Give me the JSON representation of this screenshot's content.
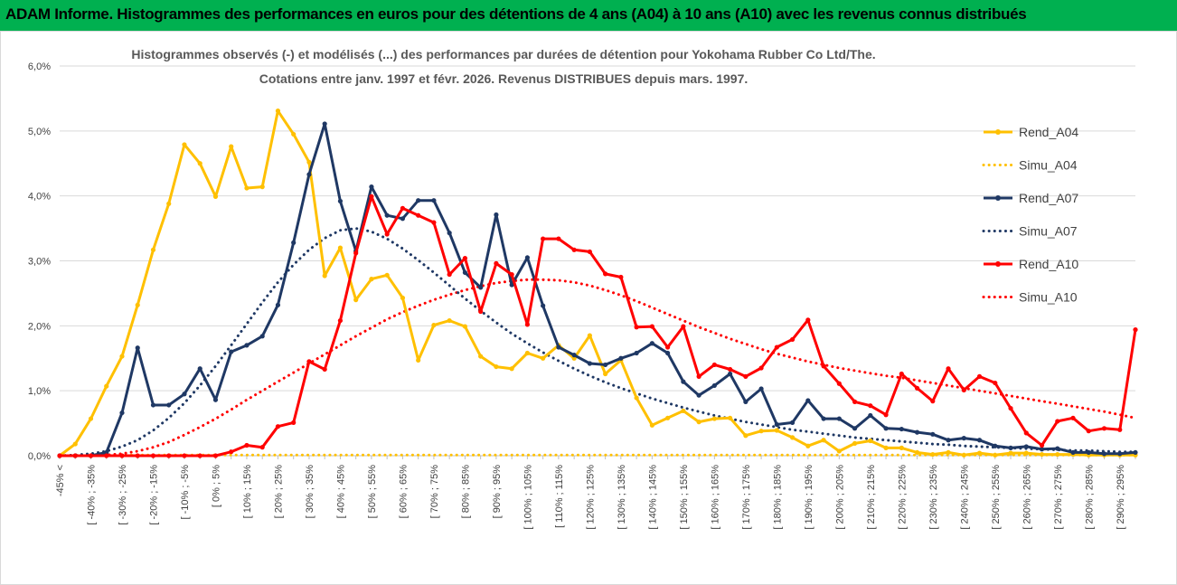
{
  "banner": {
    "title": "ADAM Informe. Histogrammes des performances en euros pour des détentions de 4 ans (A04) à 10 ans (A10) avec les revenus connus distribués"
  },
  "chart_data": {
    "type": "line",
    "title_line1": "Histogrammes observés (-) et modélisés (...) des performances par durées de détention pour Yokohama Rubber Co Ltd/The.",
    "title_line2": "Cotations entre janv. 1997 et févr. 2026. Revenus DISTRIBUES depuis mars. 1997.",
    "ylim": [
      0,
      6
    ],
    "yticks": [
      "0,0%",
      "1,0%",
      "2,0%",
      "3,0%",
      "4,0%",
      "5,0%",
      "6,0%"
    ],
    "categories": [
      "-45% <",
      "[ -45% ; -40% ]",
      "[ -40% ; -35% ]",
      "[ -35% ; -30% ]",
      "[ -30% ; -25% ]",
      "[ -25% ; -20% ]",
      "[ -20% ; -15% ]",
      "[ -15% ; -10% ]",
      "[ -10% ; -5% ]",
      "[ -5% ; 0% ]",
      "[ 0% ; 5% ]",
      "[ 5% ; 10% ]",
      "[ 10% ; 15% ]",
      "[ 15% ; 20% ]",
      "[ 20% ; 25% ]",
      "[ 25% ; 30% ]",
      "[ 30% ; 35% ]",
      "[ 35% ; 40% ]",
      "[ 40% ; 45% ]",
      "[ 45% ; 50% ]",
      "[ 50% ; 55% ]",
      "[ 55% ; 60% ]",
      "[ 60% ; 65% ]",
      "[ 65% ; 70% ]",
      "[ 70% ; 75% ]",
      "[ 75% ; 80% ]",
      "[ 80% ; 85% ]",
      "[ 85% ; 90% ]",
      "[ 90% ; 95% ]",
      "[ 95% ; 100% ]",
      "[ 100% ; 105% ]",
      "[ 105% ; 110% ]",
      "[ 110% ; 115% ]",
      "[ 115% ; 120% ]",
      "[ 120% ; 125% ]",
      "[ 125% ; 130% ]",
      "[ 130% ; 135% ]",
      "[ 135% ; 140% ]",
      "[ 140% ; 145% ]",
      "[ 145% ; 150% ]",
      "[ 150% ; 155% ]",
      "[ 155% ; 160% ]",
      "[ 160% ; 165% ]",
      "[ 165% ; 170% ]",
      "[ 170% ; 175% ]",
      "[ 175% ; 180% ]",
      "[ 180% ; 185% ]",
      "[ 185% ; 190% ]",
      "[ 190% ; 195% ]",
      "[ 195% ; 200% ]",
      "[ 200% ; 205% ]",
      "[ 205% ; 210% ]",
      "[ 210% ; 215% ]",
      "[ 215% ; 220% ]",
      "[ 220% ; 225% ]",
      "[ 225% ; 230% ]",
      "[ 230% ; 235% ]",
      "[ 235% ; 240% ]",
      "[ 240% ; 245% ]",
      "[ 245% ; 250% ]",
      "[ 250% ; 255% ]",
      "[ 255% ; 260% ]",
      "[ 260% ; 265% ]",
      "[ 265% ; 270% ]",
      "[ 270% ; 275% ]",
      "[ 275% ; 280% ]",
      "[ 280% ; 285% ]",
      "[ 285% ; 290% ]",
      "[ 290% ; 295% ]",
      "[ 295% ; 300% ]"
    ],
    "xtick_labels": [
      "-45% <",
      "[ -40% ; -35%",
      "[ -30% ; -25%",
      "[ -20% ; -15%",
      "[ -10% ; -5%",
      "[ 0% ; 5%",
      "[ 10% ; 15%",
      "[ 20% ; 25%",
      "[ 30% ; 35%",
      "[ 40% ; 45%",
      "[ 50% ; 55%",
      "[ 60% ; 65%",
      "[ 70% ; 75%",
      "[ 80% ; 85%",
      "[ 90% ; 95%",
      "[ 100% ; 105%",
      "[ 110% ; 115%",
      "[ 120% ; 125%",
      "[ 130% ; 135%",
      "[ 140% ; 145%",
      "[ 150% ; 155%",
      "[ 160% ; 165%",
      "[ 170% ; 175%",
      "[ 180% ; 185%",
      "[ 190% ; 195%",
      "[ 200% ; 205%",
      "[ 210% ; 215%",
      "[ 220% ; 225%",
      "[ 230% ; 235%",
      "[ 240% ; 245%",
      "[ 250% ; 255%",
      "[ 260% ; 265%",
      "[ 270% ; 275%",
      "[ 280% ; 285%",
      "[ 290% ; 295%"
    ],
    "series": [
      {
        "name": "Rend_A04",
        "style": "solid",
        "color": "#FFC000",
        "values": [
          0,
          0.18,
          0.57,
          1.07,
          1.53,
          2.32,
          3.17,
          3.88,
          4.79,
          4.5,
          3.99,
          4.76,
          4.12,
          4.14,
          5.31,
          4.95,
          4.52,
          2.77,
          3.2,
          2.4,
          2.72,
          2.78,
          2.43,
          1.47,
          2.01,
          2.08,
          1.99,
          1.53,
          1.37,
          1.34,
          1.58,
          1.5,
          1.7,
          1.5,
          1.85,
          1.26,
          1.47,
          0.89,
          0.47,
          0.58,
          0.69,
          0.52,
          0.57,
          0.58,
          0.31,
          0.38,
          0.39,
          0.28,
          0.15,
          0.24,
          0.07,
          0.19,
          0.23,
          0.12,
          0.12,
          0.05,
          0.02,
          0.05,
          0.01,
          0.04,
          0.01,
          0.04,
          0.04,
          0.02,
          0.02,
          0.02,
          0.01,
          0.01,
          0.01,
          0.01
        ]
      },
      {
        "name": "Simu_A04",
        "style": "dotted",
        "color": "#FFC000",
        "values": [
          0,
          0.01,
          0.01,
          0.01,
          0.01,
          0.01,
          0.01,
          0.01,
          0.01,
          0.01,
          0.01,
          0.01,
          0.01,
          0.01,
          0.01,
          0.01,
          0.01,
          0.01,
          0.01,
          0.01,
          0.01,
          0.01,
          0.01,
          0.01,
          0.01,
          0.01,
          0.01,
          0.01,
          0.01,
          0.01,
          0.01,
          0.01,
          0.01,
          0.01,
          0.01,
          0.01,
          0.01,
          0.01,
          0.01,
          0.01,
          0.01,
          0.01,
          0.01,
          0.01,
          0.01,
          0.01,
          0.01,
          0.01,
          0.01,
          0.01,
          0.01,
          0.01,
          0.01,
          0.01,
          0.01,
          0.01,
          0.01,
          0.01,
          0.01,
          0.01,
          0.01,
          0.01,
          0.01,
          0.01,
          0.01,
          0.01,
          0.01,
          0.01,
          0.01,
          0.01
        ]
      },
      {
        "name": "Rend_A07",
        "style": "solid",
        "color": "#1F3864",
        "values": [
          0,
          0,
          0,
          0.05,
          0.66,
          1.66,
          0.78,
          0.78,
          0.95,
          1.34,
          0.86,
          1.6,
          1.7,
          1.84,
          2.32,
          3.28,
          4.33,
          5.11,
          3.92,
          3.15,
          4.14,
          3.7,
          3.65,
          3.93,
          3.93,
          3.43,
          2.82,
          2.59,
          3.71,
          2.63,
          3.05,
          2.31,
          1.67,
          1.55,
          1.42,
          1.4,
          1.5,
          1.58,
          1.73,
          1.58,
          1.14,
          0.93,
          1.08,
          1.26,
          0.83,
          1.03,
          0.48,
          0.51,
          0.85,
          0.57,
          0.57,
          0.42,
          0.62,
          0.42,
          0.41,
          0.36,
          0.33,
          0.24,
          0.27,
          0.24,
          0.15,
          0.12,
          0.14,
          0.1,
          0.11,
          0.05,
          0.05,
          0.03,
          0.03,
          0.05
        ]
      },
      {
        "name": "Simu_A07",
        "style": "dotted",
        "color": "#1F3864",
        "values": [
          0,
          0.01,
          0.03,
          0.07,
          0.14,
          0.24,
          0.39,
          0.58,
          0.81,
          1.08,
          1.38,
          1.7,
          2.03,
          2.36,
          2.67,
          2.94,
          3.17,
          3.35,
          3.47,
          3.5,
          3.45,
          3.34,
          3.19,
          3.01,
          2.82,
          2.62,
          2.42,
          2.23,
          2.05,
          1.88,
          1.73,
          1.59,
          1.46,
          1.34,
          1.23,
          1.13,
          1.04,
          0.96,
          0.88,
          0.81,
          0.74,
          0.68,
          0.62,
          0.57,
          0.52,
          0.48,
          0.44,
          0.4,
          0.37,
          0.34,
          0.31,
          0.28,
          0.26,
          0.24,
          0.22,
          0.2,
          0.18,
          0.17,
          0.15,
          0.14,
          0.13,
          0.12,
          0.11,
          0.1,
          0.09,
          0.08,
          0.08,
          0.07,
          0.06,
          0.06
        ]
      },
      {
        "name": "Rend_A10",
        "style": "solid",
        "color": "#FF0000",
        "values": [
          0,
          0,
          0,
          0,
          0,
          0,
          0,
          0,
          0,
          0,
          0,
          0.06,
          0.16,
          0.13,
          0.45,
          0.51,
          1.45,
          1.33,
          2.08,
          3.12,
          3.99,
          3.41,
          3.81,
          3.7,
          3.59,
          2.79,
          3.04,
          2.22,
          2.96,
          2.79,
          2.02,
          3.34,
          3.34,
          3.17,
          3.14,
          2.8,
          2.75,
          1.98,
          1.99,
          1.67,
          1.99,
          1.22,
          1.4,
          1.33,
          1.22,
          1.35,
          1.67,
          1.79,
          2.09,
          1.38,
          1.11,
          0.83,
          0.77,
          0.63,
          1.26,
          1.04,
          0.84,
          1.34,
          1.01,
          1.22,
          1.12,
          0.73,
          0.35,
          0.16,
          0.53,
          0.58,
          0.38,
          0.42,
          0.4,
          1.94
        ]
      },
      {
        "name": "Simu_A10",
        "style": "dotted",
        "color": "#FF0000",
        "values": [
          0,
          0,
          0,
          0.01,
          0.03,
          0.07,
          0.13,
          0.21,
          0.32,
          0.44,
          0.57,
          0.71,
          0.86,
          1.0,
          1.14,
          1.28,
          1.42,
          1.56,
          1.7,
          1.84,
          1.97,
          2.1,
          2.21,
          2.31,
          2.4,
          2.48,
          2.55,
          2.61,
          2.66,
          2.69,
          2.71,
          2.71,
          2.7,
          2.67,
          2.62,
          2.55,
          2.47,
          2.38,
          2.28,
          2.18,
          2.08,
          1.98,
          1.89,
          1.8,
          1.72,
          1.64,
          1.57,
          1.51,
          1.45,
          1.4,
          1.35,
          1.31,
          1.27,
          1.23,
          1.2,
          1.16,
          1.12,
          1.08,
          1.04,
          1.0,
          0.96,
          0.92,
          0.88,
          0.84,
          0.8,
          0.76,
          0.72,
          0.68,
          0.63,
          0.58
        ]
      }
    ],
    "legend": [
      "Rend_A04",
      "Simu_A04",
      "Rend_A07",
      "Simu_A07",
      "Rend_A10",
      "Simu_A10"
    ],
    "legend_position": "right"
  }
}
